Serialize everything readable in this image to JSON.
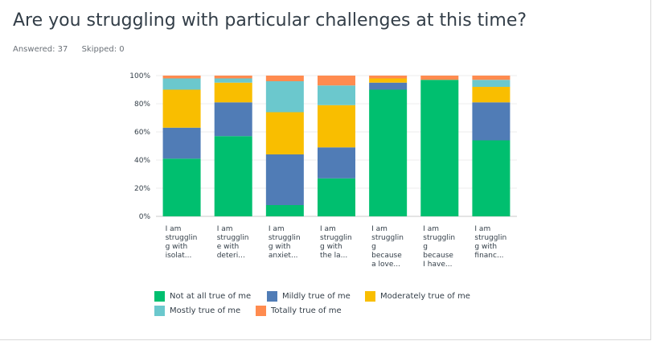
{
  "question": "Are you struggling with particular challenges at this time?",
  "answered": "Answered: 37",
  "skipped": "Skipped: 0",
  "chart_data": {
    "type": "bar",
    "stacked": true,
    "ylim": [
      0,
      100
    ],
    "yticks": [
      "0%",
      "20%",
      "40%",
      "60%",
      "80%",
      "100%"
    ],
    "categories": [
      [
        "I am",
        "strugglin",
        "g with",
        "isolat..."
      ],
      [
        "I am",
        "strugglin",
        "e with",
        "deteri..."
      ],
      [
        "I am",
        "strugglin",
        "g with",
        "anxiet..."
      ],
      [
        "I am",
        "strugglin",
        "g with",
        "the la..."
      ],
      [
        "I am",
        "strugglin",
        "g",
        "because",
        "a love..."
      ],
      [
        "I am",
        "strugglin",
        "g",
        "because",
        "I have..."
      ],
      [
        "I am",
        "strugglin",
        "g with",
        "financ..."
      ]
    ],
    "series": [
      {
        "name": "Not at all true of me",
        "color": "#00bf6f",
        "values": [
          41,
          57,
          8,
          27,
          90,
          97,
          54
        ]
      },
      {
        "name": "Mildly true of me",
        "color": "#507cb6",
        "values": [
          22,
          24,
          36,
          22,
          5,
          0,
          27
        ]
      },
      {
        "name": "Moderately true of me",
        "color": "#f9be00",
        "values": [
          27,
          14,
          30,
          30,
          3,
          0,
          11
        ]
      },
      {
        "name": "Mostly true of me",
        "color": "#6bc8cd",
        "values": [
          8,
          3,
          22,
          14,
          0,
          0,
          5
        ]
      },
      {
        "name": "Totally true of me",
        "color": "#ff8b4f",
        "values": [
          2,
          2,
          4,
          7,
          2,
          3,
          3
        ]
      }
    ]
  }
}
